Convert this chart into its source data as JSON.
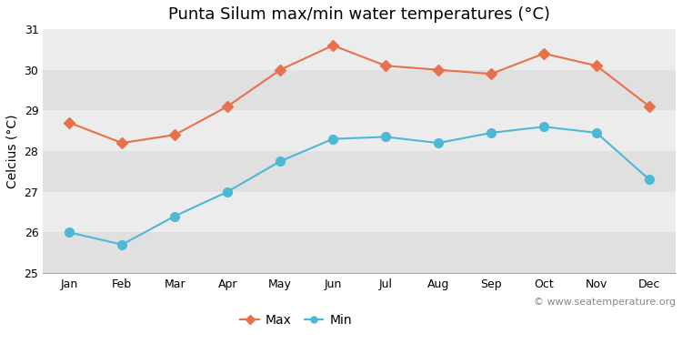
{
  "months": [
    "Jan",
    "Feb",
    "Mar",
    "Apr",
    "May",
    "Jun",
    "Jul",
    "Aug",
    "Sep",
    "Oct",
    "Nov",
    "Dec"
  ],
  "max_temps": [
    28.7,
    28.2,
    28.4,
    29.1,
    30.0,
    30.6,
    30.1,
    30.0,
    29.9,
    30.4,
    30.1,
    29.1
  ],
  "min_temps": [
    26.0,
    25.7,
    26.4,
    27.0,
    27.75,
    28.3,
    28.35,
    28.2,
    28.45,
    28.6,
    28.45,
    27.3
  ],
  "max_color": "#e8704a",
  "min_color": "#4db8d4",
  "bg_color": "#ffffff",
  "plot_bg_color": "#ececec",
  "alt_band_color": "#e0e0e0",
  "title": "Punta Silum max/min water temperatures (°C)",
  "ylabel": "Celcius (°C)",
  "ylim": [
    25,
    31
  ],
  "yticks": [
    25,
    26,
    27,
    28,
    29,
    30,
    31
  ],
  "watermark": "© www.seatemperature.org",
  "legend_labels": [
    "Max",
    "Min"
  ],
  "title_fontsize": 13,
  "label_fontsize": 10,
  "tick_fontsize": 9,
  "watermark_fontsize": 8
}
